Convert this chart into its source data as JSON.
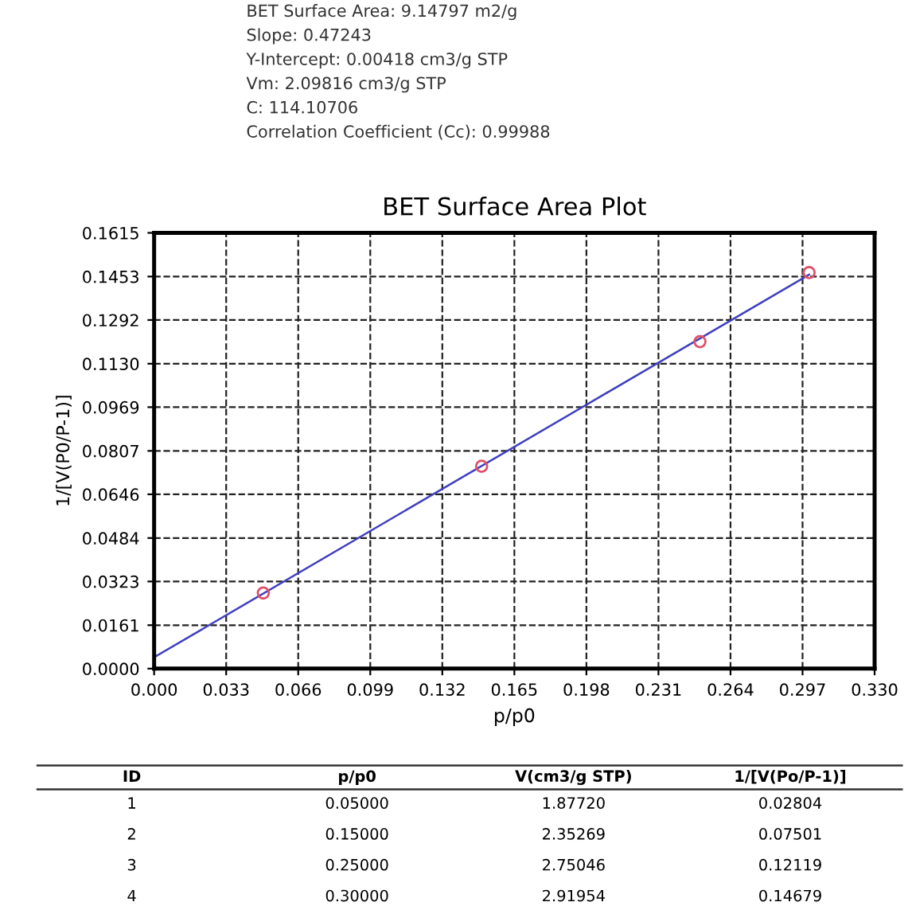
{
  "chart_data": {
    "type": "scatter",
    "title": "BET Surface Area Plot",
    "xlabel": "p/p0",
    "ylabel": "1/[V(P0/P-1)]",
    "xlim": [
      0,
      0.33
    ],
    "xticks": [
      {
        "value": 0,
        "label": "0.000"
      },
      0.033,
      0.066,
      0.099,
      0.132,
      0.165,
      0.198,
      0.231,
      0.264,
      0.297,
      {
        "value": 0.33,
        "label": "0.330"
      }
    ],
    "ylim": [
      0,
      0.1615
    ],
    "yticks": [
      {
        "value": 0,
        "label": "0.0000"
      },
      0.0161,
      0.0323,
      0.0484,
      0.0646,
      0.0807,
      0.0969,
      {
        "value": 0.113,
        "label": "0.1130"
      },
      0.1292,
      0.1453,
      0.1615
    ],
    "grid": true,
    "legend": false,
    "line_style": "dashed",
    "series": [
      {
        "type": "scatter",
        "color": "#e0506a",
        "marker": "circle",
        "x": [
          0.05,
          0.15,
          0.25,
          0.3
        ],
        "values": [
          0.02804,
          0.07501,
          0.12119,
          0.14679
        ]
      },
      {
        "type": "line",
        "color": "#4040c0",
        "marker": "none",
        "line_style": "solid",
        "x": [
          0,
          0.3
        ],
        "values": [
          0.0042,
          0.146
        ]
      }
    ],
    "annotations": [
      "BET Surface Area: 9.14797 m2/g",
      "Slope: 0.47243",
      "Y-Intercept: 0.00418 cm3/g STP",
      "Vm: 2.09816 cm3/g STP",
      "C: 114.10706",
      "Correlation Coefficient (Cc): 0.99988",
      "ID",
      "p/p0",
      "V(cm3/g STP)",
      "1/[V(Po/P-1)]",
      "1",
      "0.05000",
      "1.87720",
      "0.02804",
      "2",
      "0.15000",
      "2.35269",
      "0.07501",
      "3",
      "0.25000",
      "2.75046",
      "0.12119",
      "4",
      "0.30000",
      "2.91954",
      "0.14679"
    ]
  }
}
